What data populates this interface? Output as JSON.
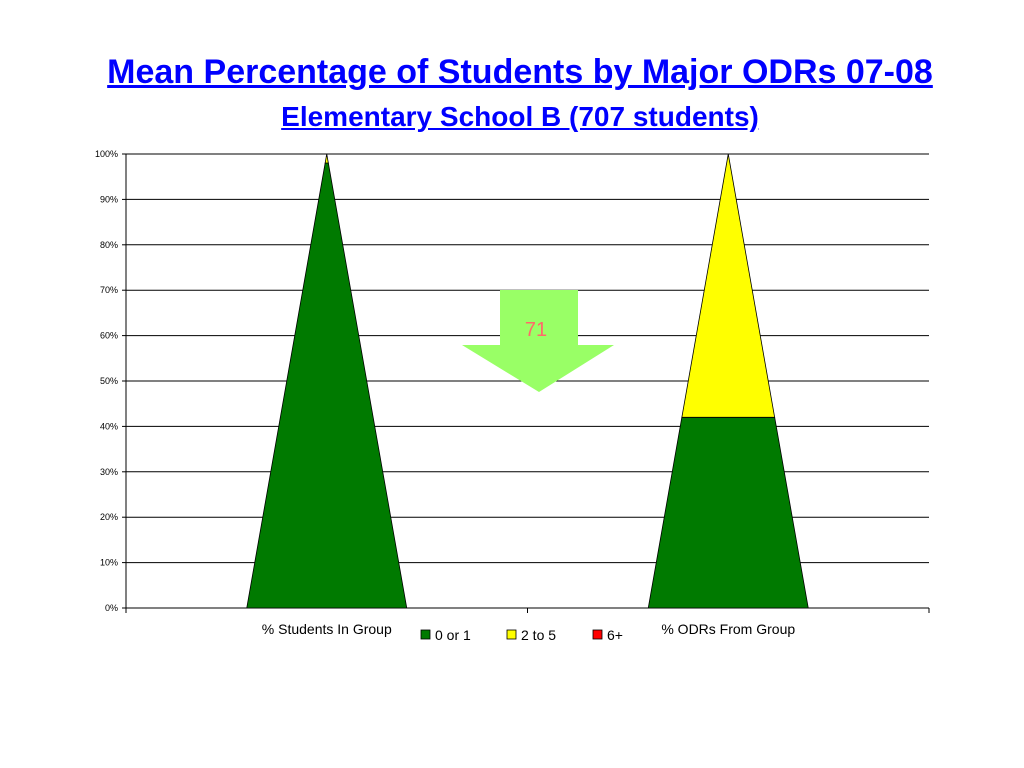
{
  "chart_data": {
    "type": "bar",
    "title": "Mean Percentage of Students by Major ODRs 07-08",
    "subtitle": "Elementary School B  (707 students)",
    "categories": [
      "% Students In Group",
      "% ODRs From Group"
    ],
    "series": [
      {
        "name": "0 or 1",
        "values": [
          98,
          42
        ]
      },
      {
        "name": "2 to 5",
        "values": [
          1.5,
          58
        ]
      },
      {
        "name": "6+",
        "values": [
          0.5,
          0
        ]
      }
    ],
    "ylim": [
      0,
      100
    ],
    "yticks": [
      "0%",
      "10%",
      "20%",
      "30%",
      "40%",
      "50%",
      "60%",
      "70%",
      "80%",
      "90%",
      "100%"
    ],
    "grid": true,
    "legend_position": "bottom",
    "annotation": "71"
  },
  "colors": {
    "0 or 1": "#007a00",
    "2 to 5": "#ffff00",
    "6+": "#ff0000",
    "arrow": "#99ff66",
    "annotation_text": "#ff6a6a",
    "title": "#0000ff"
  }
}
